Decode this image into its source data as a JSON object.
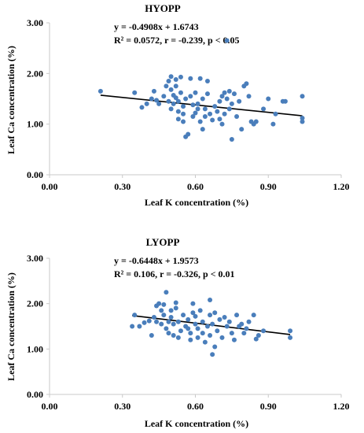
{
  "chart_data": [
    {
      "type": "scatter",
      "title": "HYOPP",
      "equation": "y = -0.4908x + 1.6743",
      "stats": "R² = 0.0572, r = -0.239, p < 0.05",
      "xlabel": "Leaf K concentration (%)",
      "ylabel": "Leaf Ca concentration (%)",
      "xlim": [
        0,
        1.2
      ],
      "ylim": [
        0,
        3
      ],
      "xticks": [
        "0.00",
        "0.30",
        "0.60",
        "0.90",
        "1.20"
      ],
      "yticks": [
        "0.00",
        "1.00",
        "2.00",
        "3.00"
      ],
      "grid": false,
      "trendline": {
        "slope": -0.4908,
        "intercept": 1.6743,
        "x_range": [
          0.21,
          1.04
        ]
      },
      "marker_color": "#4a7ebb",
      "points": [
        [
          0.21,
          1.65
        ],
        [
          0.35,
          1.62
        ],
        [
          0.38,
          1.33
        ],
        [
          0.4,
          1.4
        ],
        [
          0.42,
          1.5
        ],
        [
          0.43,
          1.65
        ],
        [
          0.44,
          1.47
        ],
        [
          0.45,
          1.4
        ],
        [
          0.47,
          1.55
        ],
        [
          0.48,
          1.75
        ],
        [
          0.49,
          1.85
        ],
        [
          0.49,
          1.45
        ],
        [
          0.5,
          1.94
        ],
        [
          0.5,
          1.68
        ],
        [
          0.5,
          1.3
        ],
        [
          0.51,
          1.57
        ],
        [
          0.51,
          1.4
        ],
        [
          0.52,
          1.88
        ],
        [
          0.52,
          1.75
        ],
        [
          0.52,
          1.52
        ],
        [
          0.53,
          1.45
        ],
        [
          0.53,
          1.25
        ],
        [
          0.53,
          1.1
        ],
        [
          0.54,
          1.93
        ],
        [
          0.54,
          1.62
        ],
        [
          0.55,
          1.35
        ],
        [
          0.55,
          1.2
        ],
        [
          0.55,
          1.05
        ],
        [
          0.56,
          0.75
        ],
        [
          0.56,
          1.5
        ],
        [
          0.57,
          0.8
        ],
        [
          0.58,
          1.9
        ],
        [
          0.58,
          1.55
        ],
        [
          0.59,
          1.38
        ],
        [
          0.59,
          1.15
        ],
        [
          0.6,
          1.22
        ],
        [
          0.6,
          1.62
        ],
        [
          0.61,
          1.3
        ],
        [
          0.61,
          1.4
        ],
        [
          0.62,
          1.9
        ],
        [
          0.62,
          1.05
        ],
        [
          0.63,
          0.9
        ],
        [
          0.63,
          1.5
        ],
        [
          0.64,
          1.3
        ],
        [
          0.64,
          1.15
        ],
        [
          0.65,
          1.85
        ],
        [
          0.65,
          1.6
        ],
        [
          0.66,
          1.2
        ],
        [
          0.67,
          1.08
        ],
        [
          0.68,
          1.35
        ],
        [
          0.69,
          1.25
        ],
        [
          0.7,
          1.45
        ],
        [
          0.7,
          1.1
        ],
        [
          0.71,
          1.0
        ],
        [
          0.71,
          1.55
        ],
        [
          0.72,
          1.62
        ],
        [
          0.72,
          1.2
        ],
        [
          0.73,
          2.65
        ],
        [
          0.73,
          1.5
        ],
        [
          0.74,
          1.65
        ],
        [
          0.74,
          1.3
        ],
        [
          0.75,
          0.7
        ],
        [
          0.75,
          1.4
        ],
        [
          0.76,
          1.6
        ],
        [
          0.77,
          1.15
        ],
        [
          0.78,
          1.45
        ],
        [
          0.79,
          0.9
        ],
        [
          0.8,
          1.75
        ],
        [
          0.81,
          1.8
        ],
        [
          0.82,
          1.55
        ],
        [
          0.83,
          1.05
        ],
        [
          0.84,
          1.0
        ],
        [
          0.85,
          1.05
        ],
        [
          0.88,
          1.3
        ],
        [
          0.9,
          1.5
        ],
        [
          0.92,
          1.0
        ],
        [
          0.93,
          1.2
        ],
        [
          0.96,
          1.45
        ],
        [
          0.97,
          1.45
        ],
        [
          1.04,
          1.05
        ],
        [
          1.04,
          1.12
        ],
        [
          1.04,
          1.55
        ]
      ]
    },
    {
      "type": "scatter",
      "title": "LYOPP",
      "equation": "y = -0.6448x + 1.9573",
      "stats": "R² = 0.106, r = -0.326, p < 0.01",
      "xlabel": "Leaf K concentration (%)",
      "ylabel": "Leaf Ca concentration (%)",
      "xlim": [
        0,
        1.2
      ],
      "ylim": [
        0,
        3
      ],
      "xticks": [
        "0.00",
        "0.30",
        "0.60",
        "0.90",
        "1.20"
      ],
      "yticks": [
        "0.00",
        "1.00",
        "2.00",
        "3.00"
      ],
      "grid": false,
      "trendline": {
        "slope": -0.6448,
        "intercept": 1.9573,
        "x_range": [
          0.34,
          0.99
        ]
      },
      "marker_color": "#4a7ebb",
      "points": [
        [
          0.34,
          1.5
        ],
        [
          0.35,
          1.75
        ],
        [
          0.37,
          1.5
        ],
        [
          0.39,
          1.58
        ],
        [
          0.41,
          1.62
        ],
        [
          0.42,
          1.3
        ],
        [
          0.43,
          1.7
        ],
        [
          0.44,
          1.95
        ],
        [
          0.44,
          1.6
        ],
        [
          0.45,
          2.0
        ],
        [
          0.46,
          1.85
        ],
        [
          0.46,
          1.55
        ],
        [
          0.47,
          1.98
        ],
        [
          0.47,
          1.75
        ],
        [
          0.48,
          2.25
        ],
        [
          0.48,
          1.45
        ],
        [
          0.49,
          1.6
        ],
        [
          0.49,
          1.35
        ],
        [
          0.5,
          1.85
        ],
        [
          0.5,
          1.7
        ],
        [
          0.51,
          1.55
        ],
        [
          0.51,
          1.3
        ],
        [
          0.52,
          2.02
        ],
        [
          0.52,
          1.9
        ],
        [
          0.53,
          1.25
        ],
        [
          0.53,
          1.6
        ],
        [
          0.54,
          1.4
        ],
        [
          0.55,
          1.75
        ],
        [
          0.56,
          1.5
        ],
        [
          0.57,
          1.65
        ],
        [
          0.57,
          1.45
        ],
        [
          0.58,
          1.35
        ],
        [
          0.58,
          1.2
        ],
        [
          0.59,
          2.0
        ],
        [
          0.59,
          1.8
        ],
        [
          0.6,
          1.72
        ],
        [
          0.6,
          1.55
        ],
        [
          0.61,
          1.45
        ],
        [
          0.61,
          1.25
        ],
        [
          0.62,
          1.85
        ],
        [
          0.63,
          1.6
        ],
        [
          0.63,
          1.35
        ],
        [
          0.64,
          1.15
        ],
        [
          0.65,
          1.5
        ],
        [
          0.66,
          2.08
        ],
        [
          0.66,
          1.75
        ],
        [
          0.66,
          1.3
        ],
        [
          0.67,
          0.88
        ],
        [
          0.67,
          1.55
        ],
        [
          0.68,
          1.05
        ],
        [
          0.68,
          1.8
        ],
        [
          0.69,
          1.4
        ],
        [
          0.7,
          1.65
        ],
        [
          0.71,
          1.25
        ],
        [
          0.72,
          1.7
        ],
        [
          0.73,
          1.5
        ],
        [
          0.74,
          1.6
        ],
        [
          0.75,
          1.35
        ],
        [
          0.76,
          1.2
        ],
        [
          0.77,
          1.75
        ],
        [
          0.78,
          1.5
        ],
        [
          0.79,
          1.55
        ],
        [
          0.8,
          1.35
        ],
        [
          0.81,
          1.45
        ],
        [
          0.82,
          1.6
        ],
        [
          0.84,
          1.75
        ],
        [
          0.85,
          1.22
        ],
        [
          0.86,
          1.3
        ],
        [
          0.88,
          1.4
        ],
        [
          0.99,
          1.4
        ],
        [
          0.99,
          1.25
        ]
      ]
    }
  ]
}
